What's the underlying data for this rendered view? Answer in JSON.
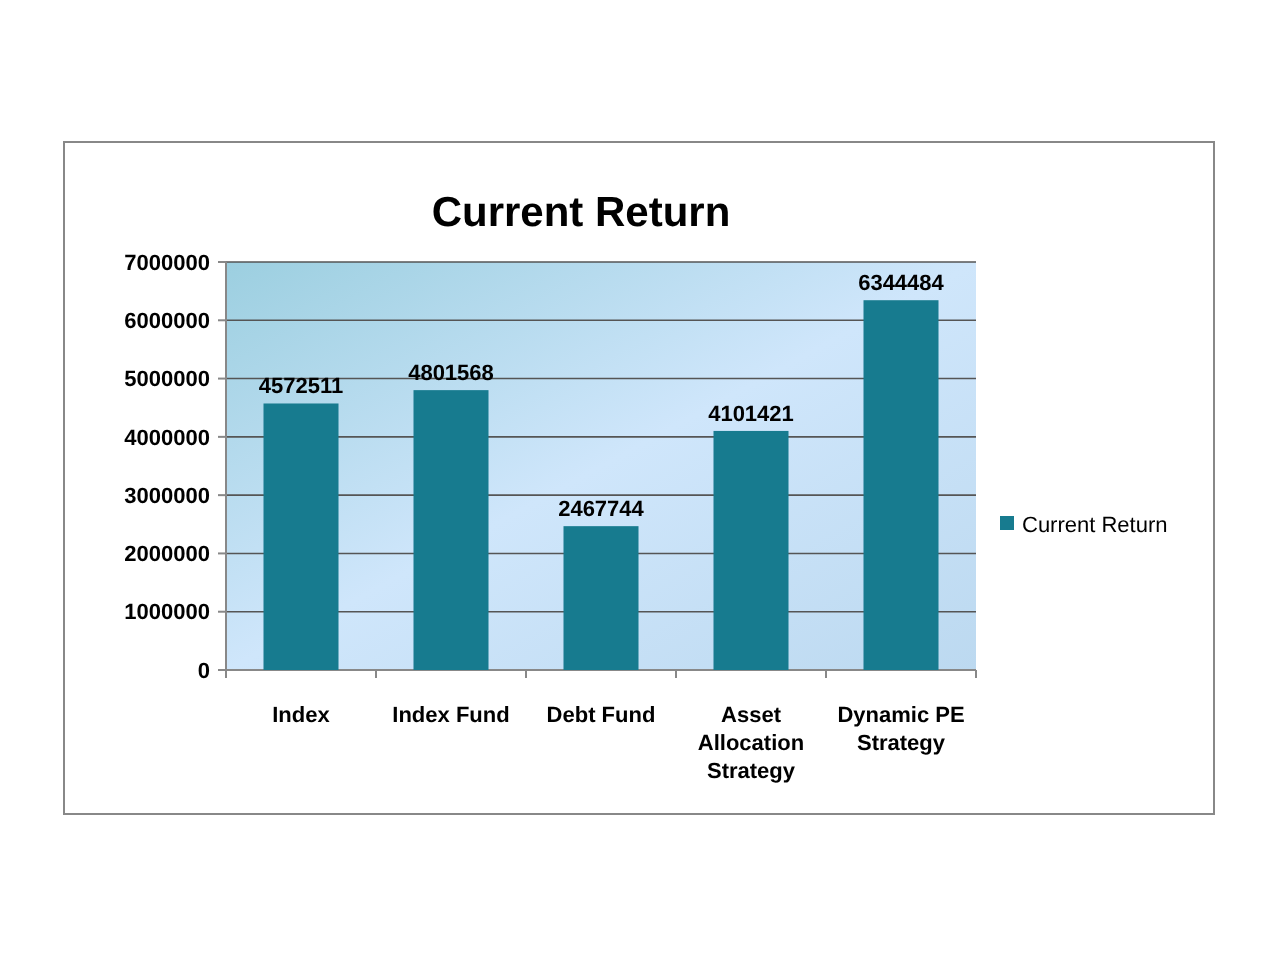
{
  "chart_data": {
    "type": "bar",
    "title": "Current Return",
    "categories": [
      "Index",
      "Index Fund",
      "Debt Fund",
      "Asset Allocation Strategy",
      "Dynamic PE Strategy"
    ],
    "series": [
      {
        "name": "Current Return",
        "color": "#177b8f",
        "values": [
          4572511,
          4801568,
          2467744,
          4101421,
          6344484
        ]
      }
    ],
    "ylim": [
      0,
      7000000
    ],
    "yticks": [
      0,
      1000000,
      2000000,
      3000000,
      4000000,
      5000000,
      6000000,
      7000000
    ],
    "grid": "y",
    "legend": "right",
    "data_labels": true
  }
}
